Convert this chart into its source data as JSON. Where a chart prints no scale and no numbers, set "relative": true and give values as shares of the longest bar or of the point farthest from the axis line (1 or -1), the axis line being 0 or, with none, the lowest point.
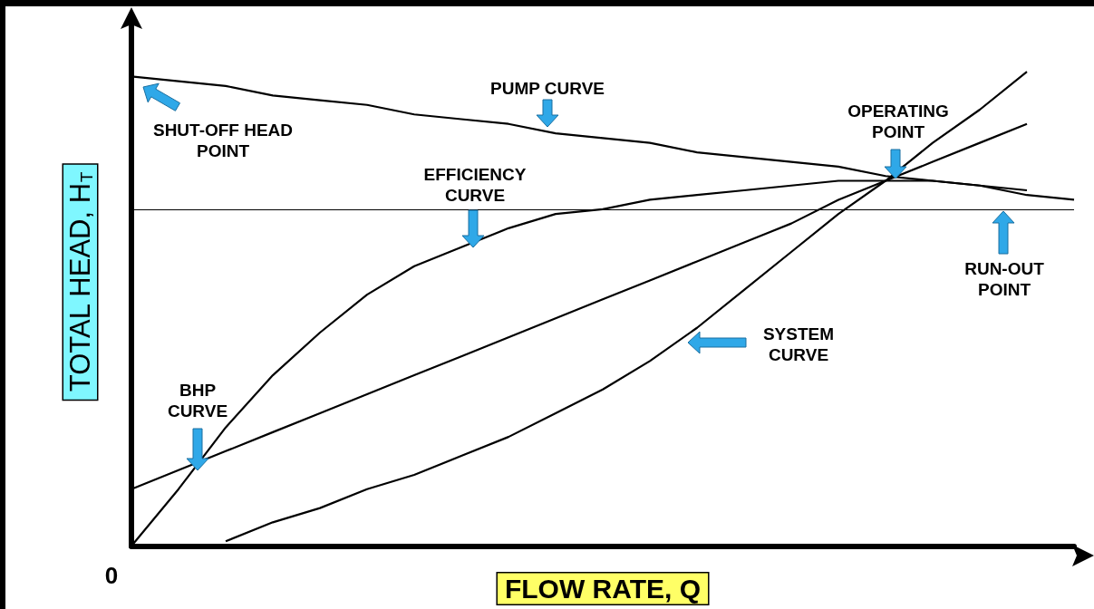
{
  "chart_data": {
    "type": "line",
    "relative": true,
    "xlabel": "FLOW RATE, Q",
    "ylabel": "TOTAL HEAD, H$_{T}$",
    "categories": [
      null,
      null,
      null,
      null,
      null,
      null,
      null,
      null,
      null,
      null,
      null,
      null,
      null,
      null,
      null,
      null,
      null,
      null,
      null,
      null,
      null
    ],
    "series": [
      {
        "color": "#000000",
        "values": [
          0.99,
          0.98,
          0.97,
          0.95,
          0.94,
          0.93,
          0.91,
          0.9,
          0.89,
          0.87,
          0.86,
          0.85,
          0.83,
          0.82,
          0.81,
          0.8,
          0.78,
          0.77,
          0.76,
          0.74,
          0.73
        ]
      },
      {
        "color": "#000000",
        "values": [
          0,
          0.12,
          0.25,
          0.36,
          0.45,
          0.53,
          0.59,
          0.63,
          0.67,
          0.7,
          0.71,
          0.73,
          0.74,
          0.75,
          0.76,
          0.77,
          0.77,
          0.77,
          0.76,
          0.75,
          null
        ]
      },
      {
        "color": "#000000",
        "values": [
          0.12,
          0.16,
          0.2,
          0.24,
          0.28,
          0.32,
          0.36,
          0.4,
          0.44,
          0.48,
          0.52,
          0.56,
          0.6,
          0.64,
          0.68,
          0.73,
          0.77,
          0.81,
          0.85,
          0.89,
          null
        ]
      },
      {
        "color": "#000000",
        "values": [
          null,
          null,
          0.01,
          0.05,
          0.08,
          0.12,
          0.15,
          0.19,
          0.23,
          0.28,
          0.33,
          0.39,
          0.46,
          0.54,
          0.62,
          0.7,
          0.77,
          0.85,
          0.92,
          1.0,
          null
        ]
      }
    ],
    "ref_lines": [
      {
        "axis": "y",
        "value": 0.71,
        "color": "#000000"
      }
    ],
    "annotations": [
      "PUMP CURVE",
      "SHUT-OFF HEAD\nPOINT",
      "OPERATING\nPOINT",
      "EFFICIENCY\nCURVE",
      "RUN-OUT\nPOINT",
      "SYSTEM\nCURVE",
      "BHP\nCURVE",
      "0"
    ],
    "grid": false,
    "marker": "none",
    "line_style": "solid"
  }
}
